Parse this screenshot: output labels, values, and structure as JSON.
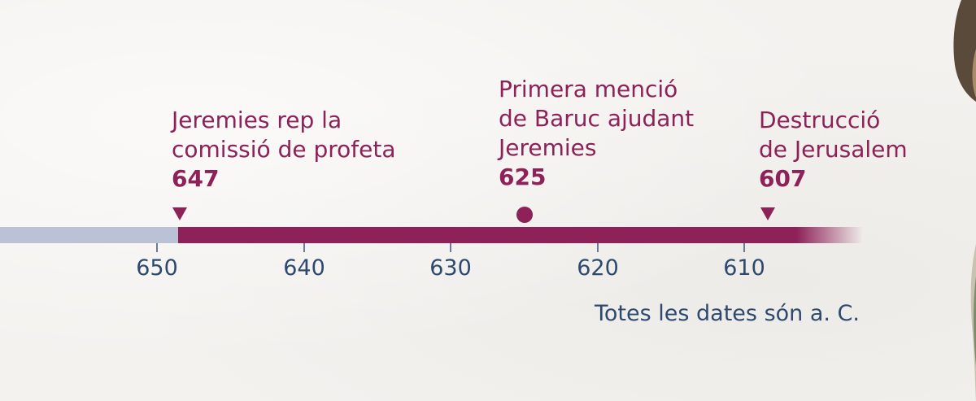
{
  "events": [
    {
      "label": "Jeremies rep la\ncomissió de profeta",
      "year": "647",
      "marker": "triangle-down"
    },
    {
      "label": "Primera menció\nde Baruc ajudant\nJeremies",
      "year": "625",
      "marker": "dot"
    },
    {
      "label": "Destrucció\nde Jerusalem",
      "year": "607",
      "marker": "triangle-down"
    }
  ],
  "axis": {
    "ticks": [
      "650",
      "640",
      "630",
      "620",
      "610"
    ],
    "direction": "descending"
  },
  "note": "Totes les dates són a. C.",
  "colors": {
    "accent": "#8e2158",
    "bar_before": "#bcc2d6",
    "axis_text": "#2d4a6e",
    "background": "#f4f2ef"
  }
}
